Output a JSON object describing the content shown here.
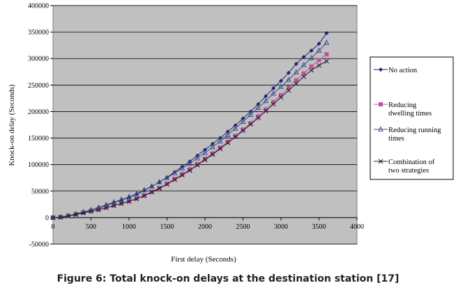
{
  "caption": "Figure 6: Total knock-on delays at the destination station [17]",
  "chart_data": {
    "type": "line",
    "xlabel": "First delay (Seconds)",
    "ylabel": "Knock-on delay (Seconds)",
    "xlim": [
      0,
      4000
    ],
    "ylim": [
      -50000,
      400000
    ],
    "xticks": [
      "0",
      "500",
      "1000",
      "1500",
      "2000",
      "2500",
      "3000",
      "3500",
      "4000"
    ],
    "yticks": [
      "-50000",
      "0",
      "50000",
      "100000",
      "150000",
      "200000",
      "250000",
      "300000",
      "350000",
      "400000"
    ],
    "grid": "horizontal",
    "plot_background": "#c0c0c0",
    "legend_position": "right",
    "x": [
      0,
      100,
      200,
      300,
      400,
      500,
      600,
      700,
      800,
      900,
      1000,
      1100,
      1200,
      1300,
      1400,
      1500,
      1600,
      1700,
      1800,
      1900,
      2000,
      2100,
      2200,
      2300,
      2400,
      2500,
      2600,
      2700,
      2800,
      2900,
      3000,
      3100,
      3200,
      3300,
      3400,
      3500,
      3600
    ],
    "series": [
      {
        "name": "No action",
        "color": "#1a237e",
        "marker": "diamond",
        "values": [
          0,
          1000,
          3500,
          7000,
          10500,
          14000,
          18000,
          23000,
          28000,
          33000,
          38000,
          44000,
          51000,
          59000,
          67000,
          76000,
          86000,
          96000,
          106000,
          117000,
          128000,
          139000,
          150000,
          162000,
          174000,
          187000,
          200000,
          214000,
          229000,
          244000,
          258000,
          273000,
          290000,
          303000,
          315000,
          328000,
          348000
        ]
      },
      {
        "name": "Reducing dwelling times",
        "color": "#c24fa0",
        "marker": "square",
        "values": [
          0,
          800,
          3000,
          6000,
          9000,
          12000,
          15000,
          19000,
          23000,
          27000,
          31000,
          36000,
          42000,
          49000,
          56000,
          64000,
          73000,
          82000,
          91000,
          101000,
          111000,
          121000,
          132000,
          143000,
          154000,
          166000,
          178000,
          191000,
          204000,
          218000,
          231000,
          245000,
          259000,
          272000,
          285000,
          297000,
          308000
        ]
      },
      {
        "name": "Reducing running times",
        "color": "#3f4f86",
        "marker": "triangle",
        "values": [
          0,
          1000,
          3500,
          7000,
          10500,
          14500,
          19000,
          24000,
          29000,
          34000,
          39000,
          45000,
          52000,
          59000,
          67000,
          75000,
          84000,
          93000,
          102000,
          112000,
          122000,
          133000,
          144000,
          156000,
          168000,
          181000,
          194000,
          207000,
          220000,
          234000,
          247000,
          260000,
          274000,
          288000,
          301000,
          315000,
          330000
        ]
      },
      {
        "name": "Combination of two strategies",
        "color": "#202020",
        "marker": "x",
        "values": [
          0,
          700,
          2800,
          5800,
          8800,
          11800,
          14800,
          18500,
          22500,
          26500,
          30500,
          35500,
          41000,
          48000,
          55000,
          63000,
          71500,
          80000,
          89000,
          99000,
          109000,
          119000,
          130000,
          141000,
          152000,
          164000,
          176000,
          188000,
          201000,
          214000,
          227000,
          240000,
          253000,
          266000,
          278000,
          287000,
          295000
        ]
      }
    ]
  },
  "legend": {
    "items": [
      {
        "lines": [
          "No action"
        ]
      },
      {
        "lines": [
          "Reducing",
          "dwelling times"
        ]
      },
      {
        "lines": [
          "Reducing running",
          "times"
        ]
      },
      {
        "lines": [
          "Combination of",
          "two strategies"
        ]
      }
    ]
  }
}
